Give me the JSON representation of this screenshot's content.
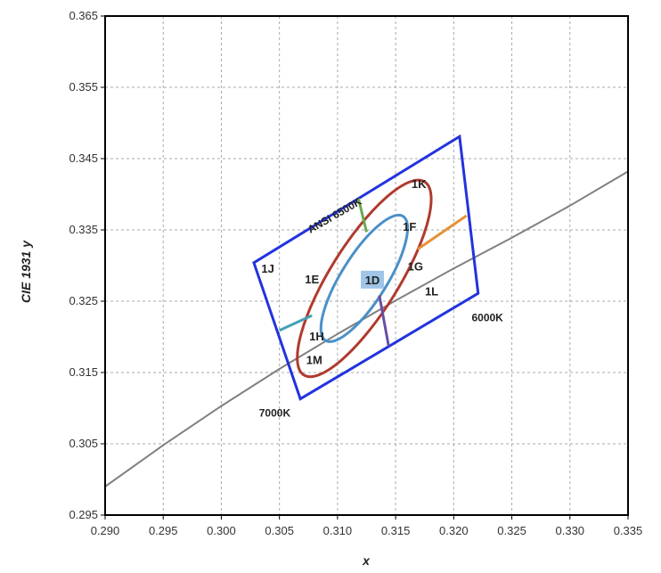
{
  "chart_data": {
    "type": "line",
    "title": "",
    "xlabel": "x",
    "ylabel": "CIE 1931 y",
    "xlim": [
      0.29,
      0.335
    ],
    "ylim": [
      0.295,
      0.365
    ],
    "x_ticks": [
      "0.290",
      "0.295",
      "0.300",
      "0.305",
      "0.310",
      "0.315",
      "0.320",
      "0.325",
      "0.330",
      "0.335"
    ],
    "y_ticks": [
      "0.295",
      "0.305",
      "0.315",
      "0.325",
      "0.335",
      "0.345",
      "0.355",
      "0.365"
    ],
    "grid": true,
    "colors": {
      "quad": "#2233dd",
      "outer_ellipse": "#b03a2e",
      "inner_ellipse": "#4a90c8",
      "locus": "#808080",
      "seg_green": "#6aa84f",
      "seg_orange": "#e69138",
      "seg_purple": "#674ea7",
      "seg_teal": "#45a2b5",
      "highlight": "#9fc5e8"
    },
    "planckian_locus": {
      "x": [
        0.29,
        0.295,
        0.3,
        0.305,
        0.31,
        0.315,
        0.32,
        0.325,
        0.33,
        0.335
      ],
      "y": [
        0.299,
        0.3048,
        0.3103,
        0.3155,
        0.3204,
        0.3251,
        0.3296,
        0.3339,
        0.3384,
        0.3432
      ]
    },
    "ansi_quadrangle": {
      "x": [
        0.3028,
        0.3205,
        0.3221,
        0.3068
      ],
      "y": [
        0.3304,
        0.3481,
        0.3261,
        0.3113
      ]
    },
    "outer_ellipse": {
      "cx": 0.3123,
      "cy": 0.3282,
      "a": 0.0098,
      "b": 0.0048,
      "angle_deg": 58
    },
    "inner_ellipse": {
      "cx": 0.3123,
      "cy": 0.3282,
      "a": 0.0063,
      "b": 0.0032,
      "angle_deg": 58
    },
    "segments": [
      {
        "color_key": "seg_green",
        "x": [
          0.3118,
          0.3125
        ],
        "y": [
          0.3394,
          0.3347
        ]
      },
      {
        "color_key": "seg_orange",
        "x": [
          0.3169,
          0.3211
        ],
        "y": [
          0.3323,
          0.337
        ]
      },
      {
        "color_key": "seg_purple",
        "x": [
          0.3136,
          0.3144
        ],
        "y": [
          0.3258,
          0.3187
        ]
      },
      {
        "color_key": "seg_teal",
        "x": [
          0.305,
          0.3078
        ],
        "y": [
          0.3209,
          0.323
        ]
      }
    ],
    "bin_labels": [
      {
        "text": "1K",
        "x": 0.317,
        "y": 0.3414
      },
      {
        "text": "1F",
        "x": 0.3162,
        "y": 0.3354
      },
      {
        "text": "1G",
        "x": 0.3167,
        "y": 0.3298
      },
      {
        "text": "1J",
        "x": 0.304,
        "y": 0.3295
      },
      {
        "text": "1E",
        "x": 0.3078,
        "y": 0.328
      },
      {
        "text": "1D",
        "x": 0.313,
        "y": 0.3279,
        "highlight": true
      },
      {
        "text": "1L",
        "x": 0.3181,
        "y": 0.3263
      },
      {
        "text": "1H",
        "x": 0.3082,
        "y": 0.32
      },
      {
        "text": "1M",
        "x": 0.308,
        "y": 0.3167
      }
    ],
    "annotations": [
      {
        "text": "ANSI 6500K",
        "x": 0.3099,
        "y": 0.3366,
        "rotate": -30
      },
      {
        "text": "6000K",
        "x": 0.3229,
        "y": 0.3222
      },
      {
        "text": "7000K",
        "x": 0.3046,
        "y": 0.3088
      }
    ]
  }
}
